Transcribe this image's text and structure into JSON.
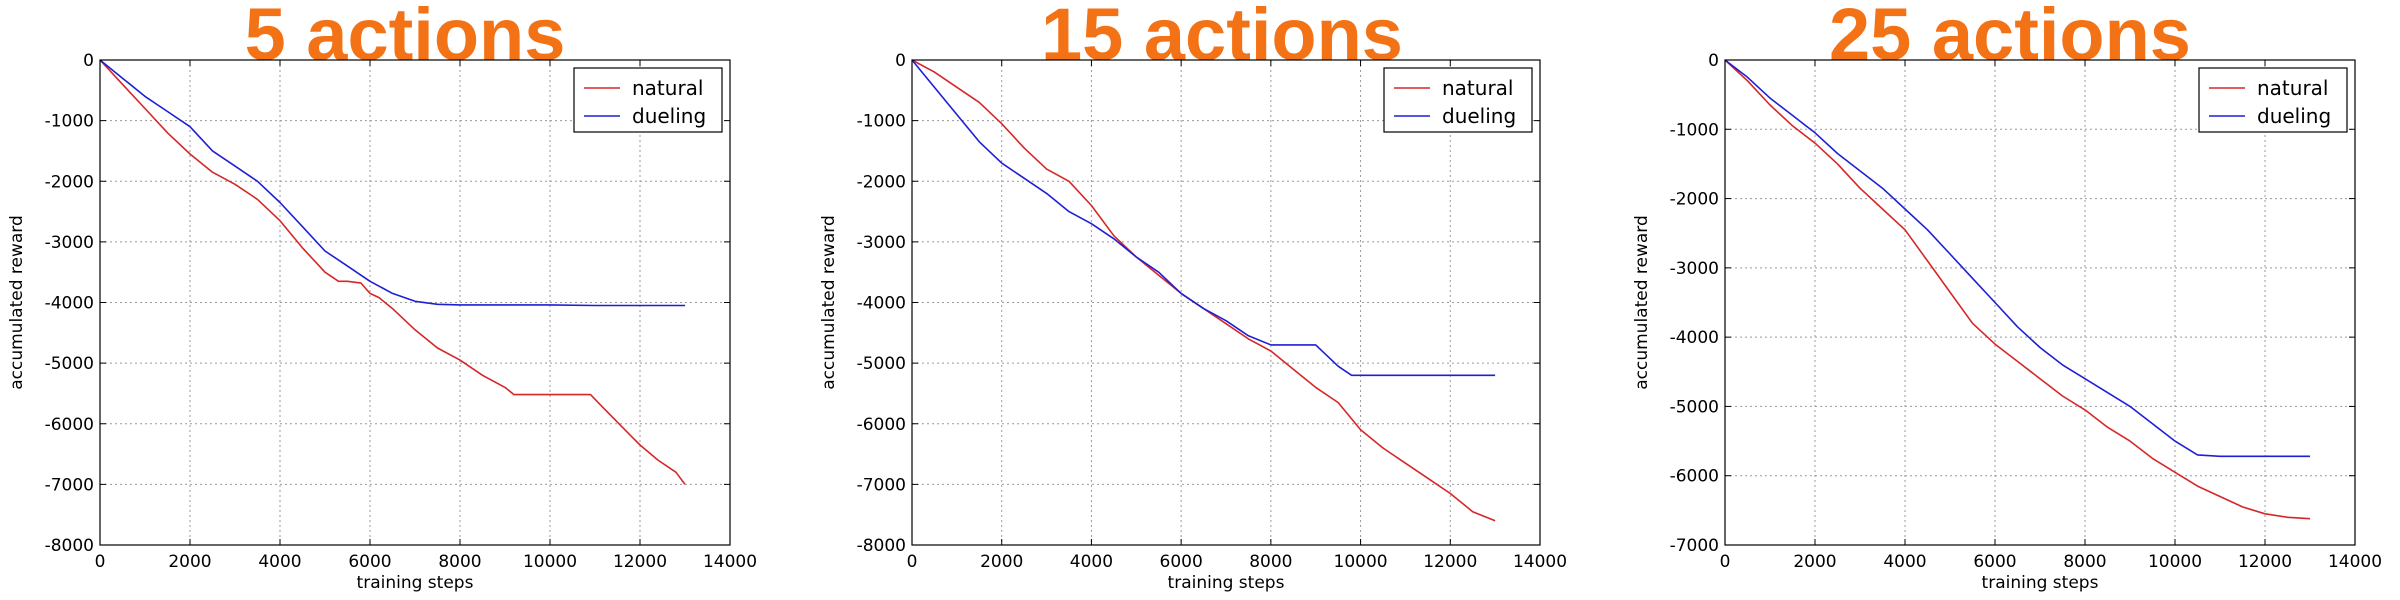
{
  "figure": {
    "title_color": "#f47216"
  },
  "chart_data": [
    {
      "type": "line",
      "title": "5 actions",
      "xlabel": "training steps",
      "ylabel": "accumulated reward",
      "xlim": [
        0,
        14000
      ],
      "ylim": [
        -8000,
        0
      ],
      "xticks": [
        0,
        2000,
        4000,
        6000,
        8000,
        10000,
        12000,
        14000
      ],
      "yticks": [
        0,
        -1000,
        -2000,
        -3000,
        -4000,
        -5000,
        -6000,
        -7000,
        -8000
      ],
      "grid": true,
      "legend_position": "top-right",
      "series": [
        {
          "name": "natural",
          "color": "#d62728",
          "x": [
            0,
            500,
            1000,
            1500,
            2000,
            2500,
            3000,
            3500,
            4000,
            4500,
            5000,
            5300,
            5500,
            5800,
            6000,
            6200,
            6500,
            7000,
            7500,
            8000,
            8500,
            9000,
            9200,
            9500,
            10000,
            10500,
            10900,
            11200,
            11600,
            12000,
            12400,
            12800,
            13000
          ],
          "y": [
            0,
            -400,
            -800,
            -1200,
            -1550,
            -1850,
            -2050,
            -2300,
            -2650,
            -3100,
            -3500,
            -3650,
            -3650,
            -3680,
            -3850,
            -3920,
            -4100,
            -4450,
            -4750,
            -4950,
            -5200,
            -5400,
            -5520,
            -5520,
            -5520,
            -5520,
            -5520,
            -5750,
            -6050,
            -6350,
            -6600,
            -6800,
            -7000
          ]
        },
        {
          "name": "dueling",
          "color": "#1f1fd6",
          "x": [
            0,
            500,
            1000,
            1500,
            2000,
            2500,
            3000,
            3500,
            4000,
            4500,
            5000,
            5500,
            6000,
            6500,
            7000,
            7500,
            8000,
            9000,
            10000,
            11000,
            12000,
            13000
          ],
          "y": [
            0,
            -300,
            -600,
            -850,
            -1100,
            -1500,
            -1750,
            -2000,
            -2350,
            -2750,
            -3150,
            -3400,
            -3650,
            -3850,
            -3980,
            -4030,
            -4040,
            -4040,
            -4040,
            -4050,
            -4050,
            -4050
          ]
        }
      ]
    },
    {
      "type": "line",
      "title": "15 actions",
      "xlabel": "training steps",
      "ylabel": "accumulated reward",
      "xlim": [
        0,
        14000
      ],
      "ylim": [
        -8000,
        0
      ],
      "xticks": [
        0,
        2000,
        4000,
        6000,
        8000,
        10000,
        12000,
        14000
      ],
      "yticks": [
        0,
        -1000,
        -2000,
        -3000,
        -4000,
        -5000,
        -6000,
        -7000,
        -8000
      ],
      "grid": true,
      "legend_position": "top-right",
      "series": [
        {
          "name": "natural",
          "color": "#d62728",
          "x": [
            0,
            500,
            1000,
            1500,
            2000,
            2500,
            3000,
            3500,
            4000,
            4500,
            5000,
            5500,
            6000,
            6500,
            7000,
            7500,
            8000,
            8500,
            9000,
            9500,
            10000,
            10500,
            11000,
            11500,
            12000,
            12500,
            13000
          ],
          "y": [
            0,
            -200,
            -450,
            -700,
            -1050,
            -1450,
            -1800,
            -2000,
            -2400,
            -2900,
            -3250,
            -3550,
            -3850,
            -4100,
            -4350,
            -4600,
            -4800,
            -5100,
            -5400,
            -5650,
            -6100,
            -6400,
            -6650,
            -6900,
            -7150,
            -7450,
            -7600
          ]
        },
        {
          "name": "dueling",
          "color": "#1f1fd6",
          "x": [
            0,
            500,
            1000,
            1500,
            2000,
            2500,
            3000,
            3500,
            4000,
            4500,
            5000,
            5500,
            6000,
            6500,
            7000,
            7500,
            8000,
            8500,
            9000,
            9500,
            9800,
            10500,
            11000,
            12000,
            13000
          ],
          "y": [
            0,
            -450,
            -900,
            -1350,
            -1700,
            -1950,
            -2200,
            -2500,
            -2700,
            -2950,
            -3250,
            -3500,
            -3850,
            -4100,
            -4300,
            -4550,
            -4700,
            -4700,
            -4700,
            -5050,
            -5200,
            -5200,
            -5200,
            -5200,
            -5200
          ]
        }
      ]
    },
    {
      "type": "line",
      "title": "25 actions",
      "xlabel": "training steps",
      "ylabel": "accumulated reward",
      "xlim": [
        0,
        14000
      ],
      "ylim": [
        -7000,
        0
      ],
      "xticks": [
        0,
        2000,
        4000,
        6000,
        8000,
        10000,
        12000,
        14000
      ],
      "yticks": [
        0,
        -1000,
        -2000,
        -3000,
        -4000,
        -5000,
        -6000,
        -7000
      ],
      "grid": true,
      "legend_position": "top-right",
      "series": [
        {
          "name": "natural",
          "color": "#d62728",
          "x": [
            0,
            500,
            1000,
            1500,
            2000,
            2500,
            3000,
            3500,
            4000,
            4500,
            5000,
            5500,
            6000,
            6500,
            7000,
            7500,
            8000,
            8500,
            9000,
            9500,
            10000,
            10500,
            11000,
            11500,
            12000,
            12500,
            13000
          ],
          "y": [
            0,
            -300,
            -650,
            -950,
            -1200,
            -1500,
            -1850,
            -2150,
            -2450,
            -2900,
            -3350,
            -3800,
            -4100,
            -4350,
            -4600,
            -4850,
            -5050,
            -5300,
            -5500,
            -5750,
            -5950,
            -6150,
            -6300,
            -6450,
            -6550,
            -6600,
            -6620
          ]
        },
        {
          "name": "dueling",
          "color": "#1f1fd6",
          "x": [
            0,
            500,
            1000,
            1500,
            2000,
            2500,
            3000,
            3500,
            4000,
            4500,
            5000,
            5500,
            6000,
            6500,
            7000,
            7500,
            8000,
            8500,
            9000,
            9500,
            10000,
            10500,
            11000,
            11500,
            12000,
            12500,
            13000
          ],
          "y": [
            0,
            -250,
            -550,
            -800,
            -1050,
            -1350,
            -1600,
            -1850,
            -2150,
            -2450,
            -2800,
            -3150,
            -3500,
            -3850,
            -4150,
            -4400,
            -4600,
            -4800,
            -5000,
            -5250,
            -5500,
            -5700,
            -5720,
            -5720,
            -5720,
            -5720,
            -5720
          ]
        }
      ]
    }
  ]
}
